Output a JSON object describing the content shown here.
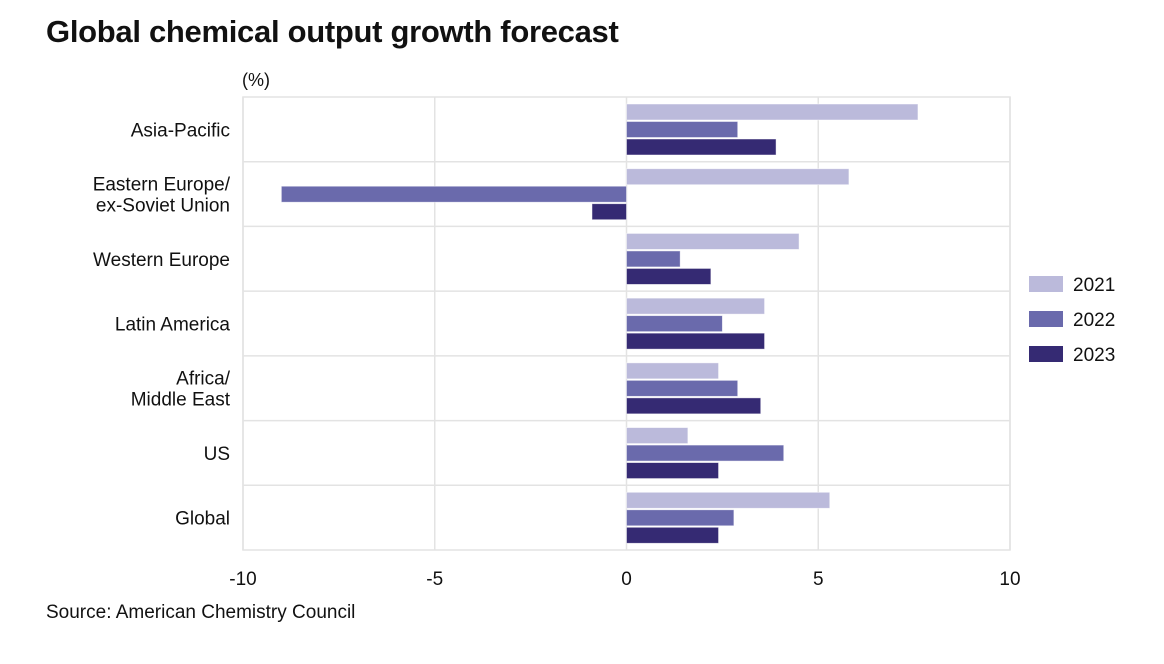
{
  "chart_data": {
    "type": "bar",
    "orientation": "horizontal",
    "title": "Global chemical output growth forecast",
    "unit_label": "(%)",
    "xlabel": "",
    "ylabel": "",
    "source": "Source: American Chemistry Council",
    "categories": [
      [
        "Asia-Pacific"
      ],
      [
        "Eastern Europe/",
        "ex-Soviet Union"
      ],
      [
        "Western Europe"
      ],
      [
        "Latin America"
      ],
      [
        "Africa/",
        "Middle East"
      ],
      [
        "US"
      ],
      [
        "Global"
      ]
    ],
    "series": [
      {
        "name": "2021",
        "color": "#bbbadb",
        "values": [
          7.6,
          5.8,
          4.5,
          3.6,
          2.4,
          1.6,
          5.3
        ]
      },
      {
        "name": "2022",
        "color": "#6a6aac",
        "values": [
          2.9,
          -9.0,
          1.4,
          2.5,
          2.9,
          4.1,
          2.8
        ]
      },
      {
        "name": "2023",
        "color": "#352a73",
        "values": [
          3.9,
          -0.9,
          2.2,
          3.6,
          3.5,
          2.4,
          2.4
        ]
      }
    ],
    "xlim": [
      -10,
      10
    ],
    "xticks": [
      -10,
      -5,
      0,
      5,
      10
    ],
    "xtick_labels": [
      "-10",
      "-5",
      "0",
      "5",
      "10"
    ],
    "grid": true,
    "legend_position": "right"
  }
}
